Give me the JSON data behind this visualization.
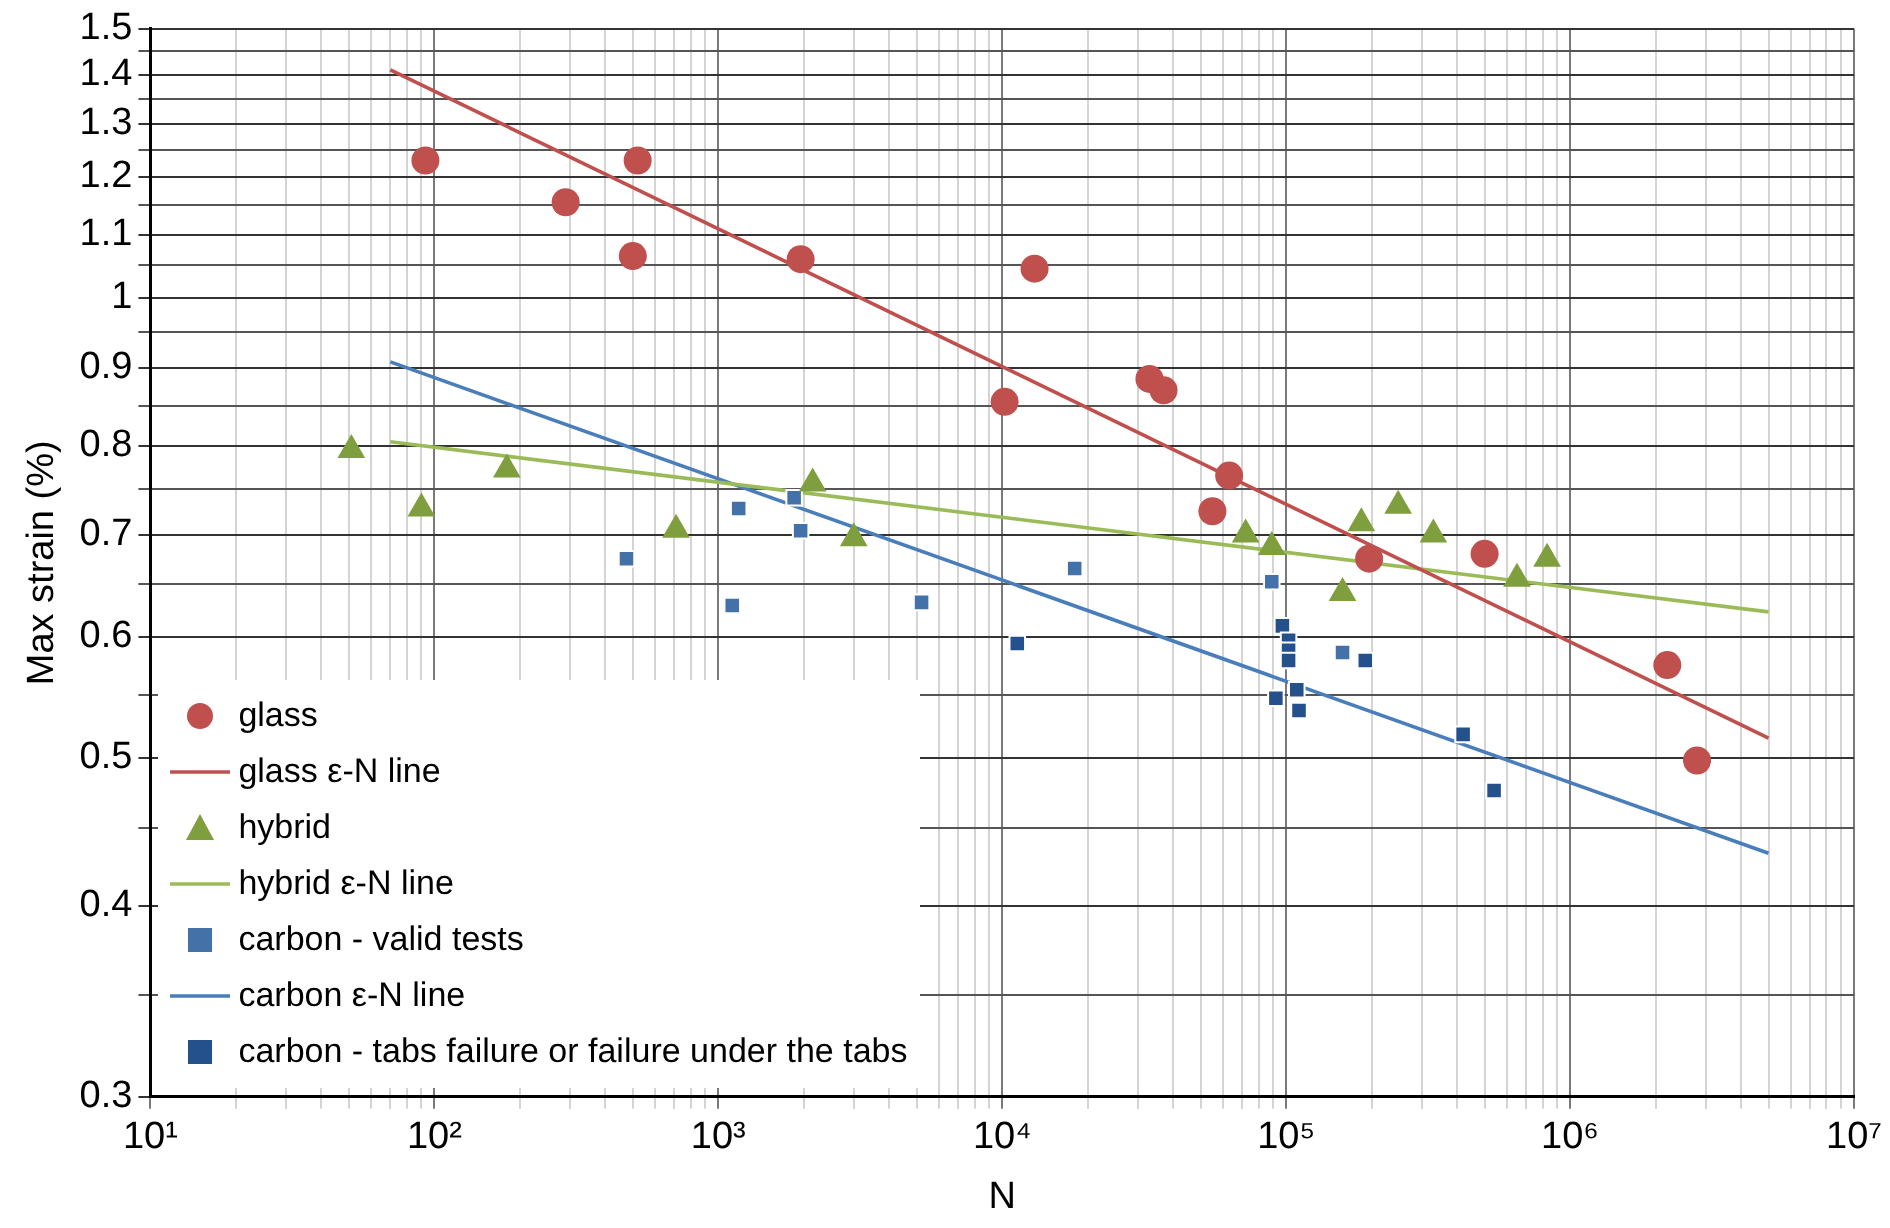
{
  "chart_data": {
    "type": "scatter",
    "xlabel": "N",
    "ylabel": "Max strain (%)",
    "log": "xy",
    "grid": true,
    "legend": "bottom left",
    "xlim": [
      10,
      10000000
    ],
    "ylim": [
      0.3,
      1.5
    ],
    "xticks": [
      {
        "value": 10,
        "label": "10¹"
      },
      {
        "value": 20,
        "label": null
      },
      {
        "value": 30,
        "label": null
      },
      {
        "value": 40,
        "label": null
      },
      {
        "value": 50,
        "label": null
      },
      {
        "value": 60,
        "label": null
      },
      {
        "value": 70,
        "label": null
      },
      {
        "value": 80,
        "label": null
      },
      {
        "value": 90,
        "label": null
      },
      {
        "value": 100,
        "label": "10²"
      },
      {
        "value": 200,
        "label": null
      },
      {
        "value": 300,
        "label": null
      },
      {
        "value": 400,
        "label": null
      },
      {
        "value": 500,
        "label": null
      },
      {
        "value": 600,
        "label": null
      },
      {
        "value": 700,
        "label": null
      },
      {
        "value": 800,
        "label": null
      },
      {
        "value": 900,
        "label": null
      },
      {
        "value": 1000,
        "label": "10³"
      },
      {
        "value": 2000,
        "label": null
      },
      {
        "value": 3000,
        "label": null
      },
      {
        "value": 4000,
        "label": null
      },
      {
        "value": 5000,
        "label": null
      },
      {
        "value": 6000,
        "label": null
      },
      {
        "value": 7000,
        "label": null
      },
      {
        "value": 8000,
        "label": null
      },
      {
        "value": 9000,
        "label": null
      },
      {
        "value": 10000,
        "label": "10⁴"
      },
      {
        "value": 20000,
        "label": null
      },
      {
        "value": 30000,
        "label": null
      },
      {
        "value": 40000,
        "label": null
      },
      {
        "value": 50000,
        "label": null
      },
      {
        "value": 60000,
        "label": null
      },
      {
        "value": 70000,
        "label": null
      },
      {
        "value": 80000,
        "label": null
      },
      {
        "value": 90000,
        "label": null
      },
      {
        "value": 100000,
        "label": "10⁵"
      },
      {
        "value": 200000,
        "label": null
      },
      {
        "value": 300000,
        "label": null
      },
      {
        "value": 400000,
        "label": null
      },
      {
        "value": 500000,
        "label": null
      },
      {
        "value": 600000,
        "label": null
      },
      {
        "value": 700000,
        "label": null
      },
      {
        "value": 800000,
        "label": null
      },
      {
        "value": 900000,
        "label": null
      },
      {
        "value": 1000000,
        "label": "10⁶"
      },
      {
        "value": 2000000,
        "label": null
      },
      {
        "value": 3000000,
        "label": null
      },
      {
        "value": 4000000,
        "label": null
      },
      {
        "value": 5000000,
        "label": null
      },
      {
        "value": 6000000,
        "label": null
      },
      {
        "value": 7000000,
        "label": null
      },
      {
        "value": 8000000,
        "label": null
      },
      {
        "value": 9000000,
        "label": null
      },
      {
        "value": 10000000,
        "label": "10⁷"
      }
    ],
    "yticks": [
      0.3,
      {
        "value": 0.35,
        "label": null
      },
      0.4,
      {
        "value": 0.45,
        "label": null
      },
      0.5,
      {
        "value": 0.55,
        "label": null
      },
      0.6,
      {
        "value": 0.65,
        "label": null
      },
      0.7,
      {
        "value": 0.75,
        "label": null
      },
      0.8,
      {
        "value": 0.85,
        "label": null
      },
      0.9,
      {
        "value": 0.95,
        "label": null
      },
      1,
      {
        "value": 1.05,
        "label": null
      },
      1.1,
      {
        "value": 1.15,
        "label": null
      },
      1.2,
      {
        "value": 1.25,
        "label": null
      },
      1.3,
      {
        "value": 1.35,
        "label": null
      },
      1.4,
      {
        "value": 1.45,
        "label": null
      },
      1.5
    ],
    "series": [
      {
        "name": "glass",
        "marker": "circle",
        "color": "#c0504d",
        "x": [
          93,
          290,
          520,
          500,
          1950,
          13000,
          10200,
          33000,
          37000,
          63000,
          55000,
          196000,
          500000,
          2200000,
          2800000
        ],
        "values": [
          1.23,
          1.155,
          1.23,
          1.065,
          1.06,
          1.045,
          0.855,
          0.885,
          0.87,
          0.765,
          0.725,
          0.675,
          0.68,
          0.575,
          0.498
        ]
      },
      {
        "name": "glass ε-N line",
        "type": "line",
        "marker": "none",
        "color": "#c0504d",
        "x": [
          70,
          5000000
        ],
        "values": [
          1.41,
          0.515
        ]
      },
      {
        "name": "hybrid",
        "marker": "triangle",
        "color": "#7f9f3f",
        "x": [
          51,
          90,
          180,
          710,
          2150,
          3000,
          72000,
          89000,
          184000,
          248000,
          330000,
          158000,
          650000,
          830000
        ],
        "values": [
          0.795,
          0.728,
          0.772,
          0.705,
          0.756,
          0.696,
          0.7,
          0.687,
          0.712,
          0.731,
          0.7,
          0.641,
          0.655,
          0.675
        ]
      },
      {
        "name": "hybrid ε-N line",
        "type": "line",
        "marker": "none",
        "color": "#9bbb59",
        "x": [
          70,
          5000000
        ],
        "values": [
          0.805,
          0.623
        ]
      },
      {
        "name": "carbon - valid tests",
        "marker": "square",
        "color": "#4472a8",
        "x": [
          475,
          1180,
          1850,
          1950,
          1120,
          5200,
          18000,
          89000,
          158000
        ],
        "values": [
          0.675,
          0.728,
          0.74,
          0.704,
          0.629,
          0.632,
          0.665,
          0.652,
          0.586
        ]
      },
      {
        "name": "carbon ε-N line",
        "type": "line",
        "marker": "none",
        "color": "#4a7ebb",
        "x": [
          70,
          5000000
        ],
        "values": [
          0.908,
          0.433
        ]
      },
      {
        "name": "carbon - tabs failure or failure under the tabs",
        "marker": "square",
        "color": "#24508c",
        "x": [
          11300,
          97000,
          102000,
          102000,
          102000,
          109000,
          92000,
          111000,
          190000,
          420000,
          540000
        ],
        "values": [
          0.594,
          0.61,
          0.597,
          0.588,
          0.579,
          0.554,
          0.547,
          0.537,
          0.579,
          0.518,
          0.476
        ]
      }
    ]
  }
}
